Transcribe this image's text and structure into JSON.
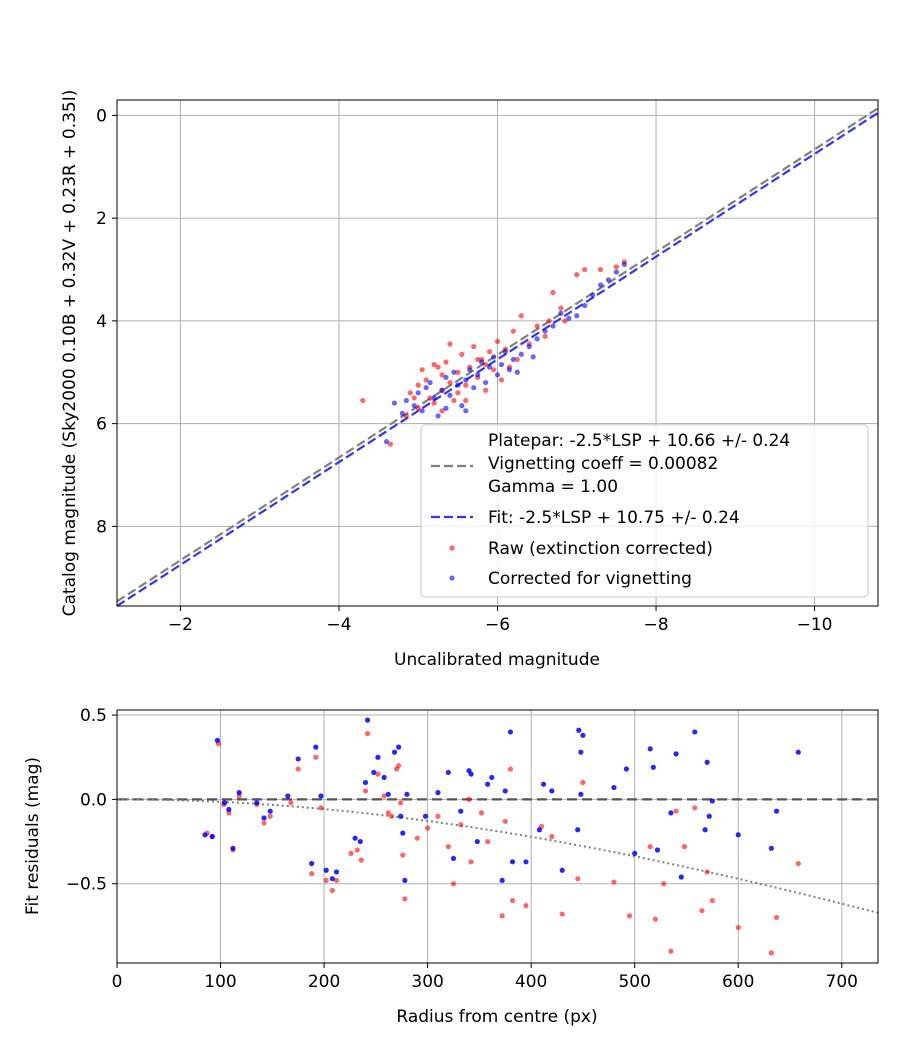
{
  "colors": {
    "raw": "#ff0000",
    "corrected": "#0000ff",
    "platepar_line": "#808080",
    "fit_line": "#3333ff",
    "vignetting_curve": "#808080",
    "grid": "#b0b0b0"
  },
  "chart_data": [
    {
      "type": "scatter",
      "xlabel": "Uncalibrated magnitude",
      "ylabel": "Catalog magnitude (Sky2000 0.10B + 0.32V + 0.23R + 0.35I)",
      "xlim": [
        -1.2,
        -10.8
      ],
      "ylim": [
        9.55,
        -0.3
      ],
      "x_ticks": [
        -2,
        -4,
        -6,
        -8,
        -10
      ],
      "x_tick_labels": [
        "−2",
        "−4",
        "−6",
        "−8",
        "−10"
      ],
      "y_ticks": [
        0,
        2,
        4,
        6,
        8
      ],
      "y_tick_labels": [
        "0",
        "2",
        "4",
        "6",
        "8"
      ],
      "grid": true,
      "legend_position": "bottom-right",
      "legend": {
        "platepar": "Platepar: -2.5*LSP + 10.66 +/- 0.24",
        "vignetting": "Vignetting coeff = 0.00082",
        "gamma": "Gamma = 1.00",
        "fit": "Fit: -2.5*LSP + 10.75 +/- 0.24",
        "raw": "Raw (extinction corrected)",
        "corrected": "Corrected for vignetting"
      },
      "lines": [
        {
          "name": "Platepar",
          "style": "dashed",
          "slope": 1,
          "intercept": 10.66
        },
        {
          "name": "Fit",
          "style": "dashed",
          "slope": 1,
          "intercept": 10.75
        }
      ],
      "series": [
        {
          "name": "Raw (extinction corrected)",
          "points": [
            [
              -4.3,
              5.55
            ],
            [
              -4.65,
              6.4
            ],
            [
              -4.85,
              5.85
            ],
            [
              -4.9,
              5.4
            ],
            [
              -5.0,
              5.25
            ],
            [
              -5.0,
              5.7
            ],
            [
              -5.05,
              4.95
            ],
            [
              -5.1,
              5.15
            ],
            [
              -5.15,
              5.5
            ],
            [
              -5.2,
              4.85
            ],
            [
              -5.2,
              5.6
            ],
            [
              -5.3,
              5.05
            ],
            [
              -5.3,
              5.35
            ],
            [
              -5.35,
              4.8
            ],
            [
              -5.4,
              5.2
            ],
            [
              -5.4,
              4.45
            ],
            [
              -5.45,
              5.55
            ],
            [
              -5.5,
              5.0
            ],
            [
              -5.55,
              4.65
            ],
            [
              -5.6,
              5.25
            ],
            [
              -5.65,
              4.9
            ],
            [
              -5.7,
              4.5
            ],
            [
              -5.75,
              5.1
            ],
            [
              -5.8,
              4.75
            ],
            [
              -5.85,
              5.35
            ],
            [
              -5.9,
              4.6
            ],
            [
              -5.95,
              4.95
            ],
            [
              -6.0,
              4.4
            ],
            [
              -6.05,
              5.15
            ],
            [
              -6.1,
              4.55
            ],
            [
              -6.2,
              4.2
            ],
            [
              -6.25,
              4.75
            ],
            [
              -6.3,
              3.9
            ],
            [
              -6.4,
              4.45
            ],
            [
              -6.5,
              4.1
            ],
            [
              -6.6,
              4.3
            ],
            [
              -6.65,
              4.0
            ],
            [
              -6.7,
              3.45
            ],
            [
              -6.8,
              3.75
            ],
            [
              -6.85,
              4.0
            ],
            [
              -7.0,
              3.1
            ],
            [
              -7.1,
              3.0
            ],
            [
              -7.3,
              3.0
            ],
            [
              -7.5,
              2.95
            ],
            [
              -7.6,
              2.85
            ],
            [
              -5.3,
              5.75
            ],
            [
              -5.6,
              5.55
            ],
            [
              -5.85,
              4.85
            ],
            [
              -6.15,
              4.9
            ],
            [
              -4.95,
              5.5
            ],
            [
              -5.25,
              4.9
            ],
            [
              -5.5,
              5.4
            ],
            [
              -5.75,
              4.75
            ]
          ]
        },
        {
          "name": "Corrected for vignetting",
          "points": [
            [
              -4.6,
              6.35
            ],
            [
              -4.8,
              5.8
            ],
            [
              -4.85,
              5.55
            ],
            [
              -4.95,
              5.65
            ],
            [
              -5.0,
              5.4
            ],
            [
              -5.05,
              5.75
            ],
            [
              -5.1,
              5.3
            ],
            [
              -5.15,
              5.2
            ],
            [
              -5.2,
              5.5
            ],
            [
              -5.25,
              5.85
            ],
            [
              -5.3,
              5.35
            ],
            [
              -5.35,
              5.1
            ],
            [
              -5.4,
              5.45
            ],
            [
              -5.45,
              5.0
            ],
            [
              -5.5,
              5.25
            ],
            [
              -5.55,
              5.65
            ],
            [
              -5.6,
              5.15
            ],
            [
              -5.65,
              4.95
            ],
            [
              -5.7,
              5.3
            ],
            [
              -5.75,
              5.05
            ],
            [
              -5.8,
              4.8
            ],
            [
              -5.85,
              5.2
            ],
            [
              -5.9,
              4.9
            ],
            [
              -5.95,
              4.7
            ],
            [
              -6.0,
              5.05
            ],
            [
              -6.05,
              4.85
            ],
            [
              -6.1,
              4.6
            ],
            [
              -6.2,
              4.75
            ],
            [
              -6.25,
              5.0
            ],
            [
              -6.3,
              4.65
            ],
            [
              -6.4,
              4.5
            ],
            [
              -6.5,
              4.35
            ],
            [
              -6.6,
              4.2
            ],
            [
              -6.7,
              4.1
            ],
            [
              -6.8,
              3.85
            ],
            [
              -6.9,
              3.95
            ],
            [
              -7.0,
              3.9
            ],
            [
              -7.1,
              3.7
            ],
            [
              -7.2,
              3.5
            ],
            [
              -7.3,
              3.3
            ],
            [
              -7.4,
              3.2
            ],
            [
              -7.5,
              3.05
            ],
            [
              -7.6,
              2.9
            ],
            [
              -4.7,
              5.6
            ],
            [
              -5.35,
              5.7
            ],
            [
              -5.6,
              5.75
            ],
            [
              -6.15,
              4.95
            ],
            [
              -6.45,
              4.7
            ]
          ]
        }
      ]
    },
    {
      "type": "scatter",
      "xlabel": "Radius from centre (px)",
      "ylabel": "Fit residuals (mag)",
      "xlim": [
        0,
        735
      ],
      "ylim": [
        -0.97,
        0.53
      ],
      "x_ticks": [
        0,
        100,
        200,
        300,
        400,
        500,
        600,
        700
      ],
      "x_tick_labels": [
        "0",
        "100",
        "200",
        "300",
        "400",
        "500",
        "600",
        "700"
      ],
      "y_ticks": [
        0.5,
        0.0,
        -0.5
      ],
      "y_tick_labels": [
        "0.5",
        "0.0",
        "−0.5"
      ],
      "grid": true,
      "vignetting_coeff": 0.00082,
      "series": [
        {
          "name": "Raw",
          "points": [
            [
              87,
              -0.2
            ],
            [
              92,
              -0.22
            ],
            [
              98,
              0.33
            ],
            [
              103,
              -0.03
            ],
            [
              108,
              -0.08
            ],
            [
              112,
              -0.3
            ],
            [
              118,
              0.02
            ],
            [
              135,
              -0.03
            ],
            [
              142,
              -0.14
            ],
            [
              148,
              -0.1
            ],
            [
              168,
              -0.02
            ],
            [
              175,
              0.18
            ],
            [
              188,
              -0.44
            ],
            [
              192,
              0.25
            ],
            [
              197,
              -0.05
            ],
            [
              202,
              -0.48
            ],
            [
              208,
              -0.54
            ],
            [
              212,
              -0.48
            ],
            [
              226,
              -0.32
            ],
            [
              232,
              -0.3
            ],
            [
              236,
              -0.36
            ],
            [
              240,
              0.05
            ],
            [
              242,
              0.39
            ],
            [
              252,
              0.15
            ],
            [
              258,
              0.02
            ],
            [
              262,
              -0.08
            ],
            [
              265,
              -0.1
            ],
            [
              270,
              0.18
            ],
            [
              272,
              0.2
            ],
            [
              274,
              -0.02
            ],
            [
              276,
              -0.33
            ],
            [
              278,
              -0.59
            ],
            [
              290,
              -0.23
            ],
            [
              300,
              -0.17
            ],
            [
              310,
              -0.1
            ],
            [
              320,
              -0.28
            ],
            [
              325,
              -0.5
            ],
            [
              332,
              -0.15
            ],
            [
              340,
              0.0
            ],
            [
              342,
              -0.37
            ],
            [
              352,
              -0.08
            ],
            [
              358,
              -0.25
            ],
            [
              372,
              -0.69
            ],
            [
              375,
              -0.13
            ],
            [
              380,
              0.18
            ],
            [
              382,
              -0.6
            ],
            [
              395,
              -0.63
            ],
            [
              410,
              -0.16
            ],
            [
              420,
              -0.22
            ],
            [
              430,
              -0.68
            ],
            [
              445,
              -0.47
            ],
            [
              450,
              0.1
            ],
            [
              480,
              -0.49
            ],
            [
              495,
              -0.69
            ],
            [
              515,
              -0.28
            ],
            [
              520,
              -0.71
            ],
            [
              528,
              -0.5
            ],
            [
              535,
              -0.9
            ],
            [
              540,
              -0.07
            ],
            [
              548,
              -0.28
            ],
            [
              558,
              -0.05
            ],
            [
              565,
              -0.66
            ],
            [
              570,
              -0.43
            ],
            [
              575,
              -0.6
            ],
            [
              600,
              -0.76
            ],
            [
              632,
              -0.91
            ],
            [
              637,
              -0.7
            ],
            [
              658,
              -0.38
            ]
          ]
        },
        {
          "name": "Corrected",
          "points": [
            [
              85,
              -0.21
            ],
            [
              92,
              -0.22
            ],
            [
              97,
              0.35
            ],
            [
              104,
              -0.02
            ],
            [
              108,
              -0.06
            ],
            [
              112,
              -0.29
            ],
            [
              118,
              0.04
            ],
            [
              135,
              -0.02
            ],
            [
              142,
              -0.11
            ],
            [
              148,
              -0.07
            ],
            [
              165,
              0.02
            ],
            [
              175,
              0.24
            ],
            [
              188,
              -0.38
            ],
            [
              192,
              0.31
            ],
            [
              197,
              0.02
            ],
            [
              202,
              -0.42
            ],
            [
              208,
              -0.47
            ],
            [
              212,
              -0.43
            ],
            [
              230,
              -0.23
            ],
            [
              235,
              -0.25
            ],
            [
              240,
              0.1
            ],
            [
              242,
              0.47
            ],
            [
              248,
              0.16
            ],
            [
              252,
              0.25
            ],
            [
              258,
              0.13
            ],
            [
              262,
              0.03
            ],
            [
              268,
              0.28
            ],
            [
              272,
              0.31
            ],
            [
              274,
              -0.1
            ],
            [
              276,
              -0.2
            ],
            [
              278,
              -0.48
            ],
            [
              280,
              0.03
            ],
            [
              298,
              -0.1
            ],
            [
              310,
              0.04
            ],
            [
              320,
              0.16
            ],
            [
              325,
              -0.35
            ],
            [
              332,
              -0.07
            ],
            [
              340,
              0.17
            ],
            [
              342,
              0.15
            ],
            [
              348,
              -0.25
            ],
            [
              358,
              0.09
            ],
            [
              362,
              0.13
            ],
            [
              372,
              -0.48
            ],
            [
              375,
              0.05
            ],
            [
              380,
              0.4
            ],
            [
              382,
              -0.37
            ],
            [
              395,
              -0.37
            ],
            [
              408,
              -0.18
            ],
            [
              412,
              0.09
            ],
            [
              420,
              0.05
            ],
            [
              430,
              -0.42
            ],
            [
              445,
              -0.18
            ],
            [
              446,
              0.41
            ],
            [
              448,
              0.28
            ],
            [
              450,
              0.38
            ],
            [
              448,
              0.03
            ],
            [
              480,
              0.07
            ],
            [
              492,
              0.18
            ],
            [
              500,
              -0.32
            ],
            [
              515,
              0.3
            ],
            [
              518,
              0.19
            ],
            [
              522,
              -0.3
            ],
            [
              535,
              -0.08
            ],
            [
              540,
              0.27
            ],
            [
              545,
              -0.46
            ],
            [
              558,
              0.4
            ],
            [
              568,
              -0.18
            ],
            [
              570,
              0.22
            ],
            [
              572,
              -0.1
            ],
            [
              575,
              -0.01
            ],
            [
              600,
              -0.21
            ],
            [
              632,
              -0.29
            ],
            [
              637,
              -0.07
            ],
            [
              658,
              0.28
            ]
          ]
        }
      ]
    }
  ]
}
